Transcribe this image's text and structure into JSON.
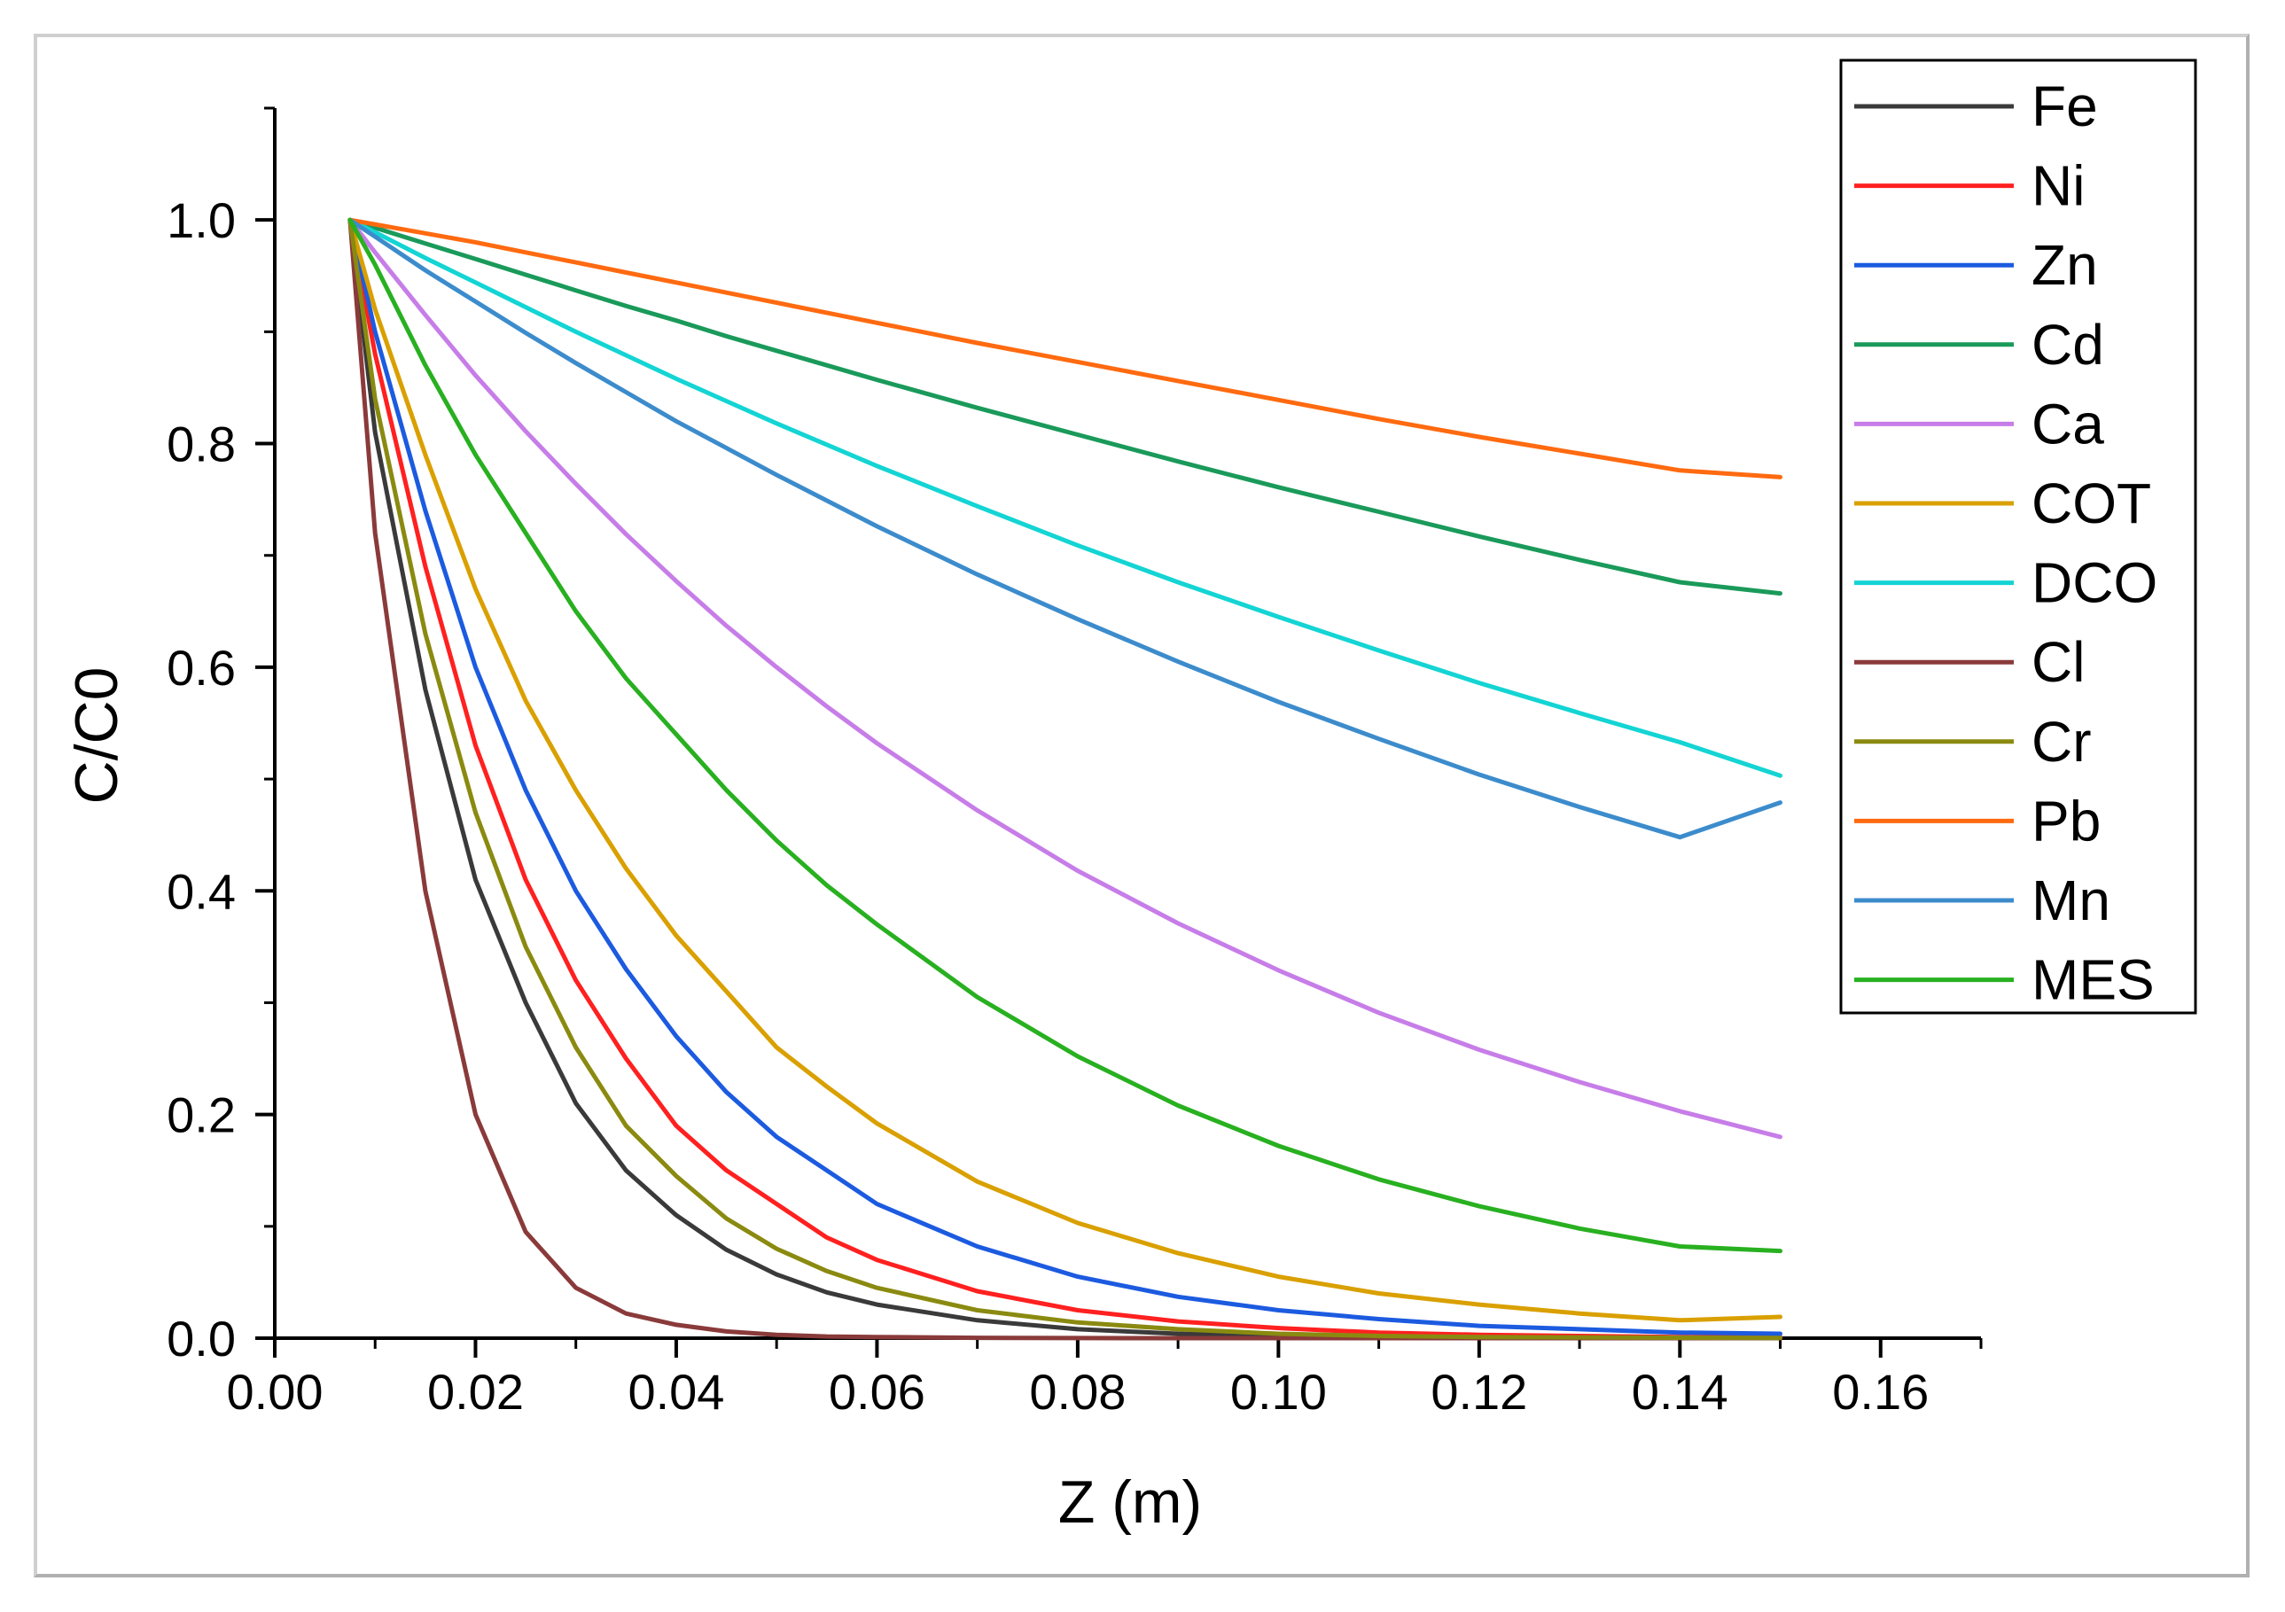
{
  "chart_data": {
    "type": "line",
    "title": "",
    "xlabel": "Z (m)",
    "ylabel": "C/C0",
    "xlim": [
      0.0,
      0.17
    ],
    "ylim": [
      0.0,
      1.1
    ],
    "x_ticks": [
      "0.00",
      "0.02",
      "0.04",
      "0.06",
      "0.08",
      "0.10",
      "0.12",
      "0.14",
      "0.16"
    ],
    "y_ticks": [
      "0.0",
      "0.2",
      "0.4",
      "0.6",
      "0.8",
      "1.0"
    ],
    "grid": false,
    "legend_position": "top-right",
    "x": [
      0.0075,
      0.01,
      0.015,
      0.02,
      0.025,
      0.03,
      0.035,
      0.04,
      0.045,
      0.05,
      0.055,
      0.06,
      0.07,
      0.08,
      0.09,
      0.1,
      0.11,
      0.12,
      0.13,
      0.14,
      0.15
    ],
    "series": [
      {
        "name": "Fe",
        "color": "#3a3a3a",
        "values": [
          1.0,
          0.81,
          0.58,
          0.41,
          0.3,
          0.21,
          0.15,
          0.11,
          0.079,
          0.057,
          0.041,
          0.03,
          0.016,
          0.008,
          0.004,
          0.002,
          0.001,
          0.0005,
          0.0003,
          0.0001,
          0.0001
        ]
      },
      {
        "name": "Ni",
        "color": "#ff2020",
        "values": [
          1.0,
          0.88,
          0.69,
          0.53,
          0.41,
          0.32,
          0.25,
          0.19,
          0.15,
          0.12,
          0.09,
          0.07,
          0.042,
          0.025,
          0.015,
          0.009,
          0.005,
          0.003,
          0.002,
          0.001,
          0.001
        ]
      },
      {
        "name": "Zn",
        "color": "#1c5be0",
        "values": [
          1.0,
          0.9,
          0.74,
          0.6,
          0.49,
          0.4,
          0.33,
          0.27,
          0.22,
          0.18,
          0.15,
          0.12,
          0.082,
          0.055,
          0.037,
          0.025,
          0.017,
          0.011,
          0.008,
          0.005,
          0.004
        ]
      },
      {
        "name": "Cd",
        "color": "#1a9a5a",
        "values": [
          1.0,
          0.993,
          0.979,
          0.965,
          0.951,
          0.937,
          0.923,
          0.91,
          0.896,
          0.883,
          0.87,
          0.857,
          0.832,
          0.808,
          0.784,
          0.761,
          0.739,
          0.717,
          0.696,
          0.676,
          0.666
        ]
      },
      {
        "name": "Ca",
        "color": "#c77de8",
        "values": [
          1.0,
          0.971,
          0.915,
          0.861,
          0.811,
          0.764,
          0.719,
          0.677,
          0.637,
          0.6,
          0.565,
          0.532,
          0.472,
          0.418,
          0.371,
          0.329,
          0.291,
          0.258,
          0.229,
          0.203,
          0.18
        ]
      },
      {
        "name": "COT",
        "color": "#d9a000",
        "values": [
          1.0,
          0.92,
          0.79,
          0.67,
          0.57,
          0.49,
          0.42,
          0.36,
          0.31,
          0.26,
          0.225,
          0.192,
          0.14,
          0.103,
          0.076,
          0.055,
          0.04,
          0.03,
          0.022,
          0.016,
          0.019
        ]
      },
      {
        "name": "DCO",
        "color": "#14d4d4",
        "values": [
          1.0,
          0.989,
          0.966,
          0.944,
          0.922,
          0.9,
          0.879,
          0.858,
          0.838,
          0.818,
          0.799,
          0.78,
          0.744,
          0.709,
          0.676,
          0.645,
          0.615,
          0.586,
          0.559,
          0.533,
          0.503
        ]
      },
      {
        "name": "Cl",
        "color": "#8a3a3a",
        "values": [
          1.0,
          0.72,
          0.4,
          0.2,
          0.095,
          0.045,
          0.022,
          0.012,
          0.006,
          0.003,
          0.0015,
          0.001,
          0.0003,
          0.0001,
          0.0,
          0.0,
          0.0,
          0.0,
          0.0,
          0.0,
          0.0
        ]
      },
      {
        "name": "Cr",
        "color": "#8a8a10",
        "values": [
          1.0,
          0.84,
          0.63,
          0.47,
          0.35,
          0.26,
          0.19,
          0.145,
          0.107,
          0.08,
          0.06,
          0.045,
          0.025,
          0.014,
          0.008,
          0.004,
          0.002,
          0.001,
          0.0007,
          0.0004,
          0.0002
        ]
      },
      {
        "name": "Pb",
        "color": "#ff6a10",
        "values": [
          1.0,
          0.996,
          0.988,
          0.98,
          0.971,
          0.962,
          0.953,
          0.944,
          0.935,
          0.926,
          0.917,
          0.908,
          0.89,
          0.873,
          0.856,
          0.839,
          0.822,
          0.806,
          0.791,
          0.776,
          0.77
        ]
      },
      {
        "name": "Mn",
        "color": "#3c8ccc",
        "values": [
          1.0,
          0.985,
          0.955,
          0.927,
          0.899,
          0.872,
          0.846,
          0.82,
          0.796,
          0.772,
          0.749,
          0.726,
          0.683,
          0.643,
          0.605,
          0.569,
          0.536,
          0.504,
          0.475,
          0.448,
          0.479
        ]
      },
      {
        "name": "MES",
        "color": "#28b020",
        "values": [
          1.0,
          0.96,
          0.87,
          0.79,
          0.72,
          0.65,
          0.59,
          0.54,
          0.49,
          0.445,
          0.405,
          0.37,
          0.305,
          0.252,
          0.208,
          0.172,
          0.142,
          0.118,
          0.098,
          0.082,
          0.078
        ]
      }
    ]
  }
}
